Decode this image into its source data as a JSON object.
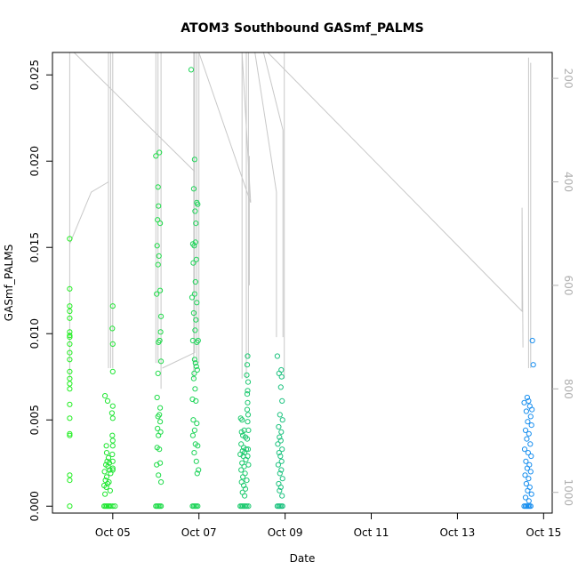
{
  "chart_data": {
    "type": "scatter",
    "title": "ATOM3 Southbound GASmf_PALMS",
    "xlabel": "Date",
    "ylabel": "GASmf_PALMS",
    "x_ticks": [
      "Oct 05",
      "Oct 07",
      "Oct 09",
      "Oct 11",
      "Oct 13",
      "Oct 15"
    ],
    "x_tick_days": [
      5,
      7,
      9,
      11,
      13,
      15
    ],
    "xlim_days": [
      3.6,
      15.2
    ],
    "y_ticks": [
      "0.000",
      "0.005",
      "0.010",
      "0.015",
      "0.020",
      "0.025"
    ],
    "y_tick_values": [
      0,
      0.005,
      0.01,
      0.015,
      0.02,
      0.025
    ],
    "ylim": [
      -0.0004,
      0.0263
    ],
    "y2_ticks": [
      "200",
      "400",
      "600",
      "800",
      "1000"
    ],
    "y2_tick_values": [
      200,
      400,
      600,
      800,
      1000
    ],
    "y2lim": [
      150,
      1040
    ],
    "y2_reversed": true,
    "grid": false,
    "marker": "open-circle",
    "point_color_start": "#22ee22",
    "point_color_end": "#1a8ff0",
    "pressure_line_color": "#c8c8c8",
    "points": [
      [
        4.0,
        0.0155
      ],
      [
        4.0,
        0.0126
      ],
      [
        4.0,
        0.0116
      ],
      [
        4.0,
        0.0113
      ],
      [
        4.0,
        0.0109
      ],
      [
        4.0,
        0.0101
      ],
      [
        4.0,
        0.0099
      ],
      [
        4.0,
        0.0098
      ],
      [
        4.0,
        0.0094
      ],
      [
        4.0,
        0.0089
      ],
      [
        4.0,
        0.0085
      ],
      [
        4.0,
        0.0078
      ],
      [
        4.0,
        0.0074
      ],
      [
        4.0,
        0.0071
      ],
      [
        4.0,
        0.0068
      ],
      [
        4.0,
        0.0059
      ],
      [
        4.0,
        0.0051
      ],
      [
        4.0,
        0.0042
      ],
      [
        4.0,
        0.0041
      ],
      [
        4.0,
        0.0018
      ],
      [
        4.0,
        0.0015
      ],
      [
        4.0,
        0.0
      ],
      [
        4.82,
        0.0064
      ],
      [
        4.88,
        0.0061
      ],
      [
        4.85,
        0.0035
      ],
      [
        4.86,
        0.0031
      ],
      [
        4.9,
        0.0028
      ],
      [
        4.87,
        0.0026
      ],
      [
        4.92,
        0.0025
      ],
      [
        4.84,
        0.0024
      ],
      [
        4.89,
        0.0023
      ],
      [
        4.93,
        0.0021
      ],
      [
        4.81,
        0.002
      ],
      [
        4.95,
        0.0019
      ],
      [
        4.86,
        0.0017
      ],
      [
        4.83,
        0.0015
      ],
      [
        4.91,
        0.0014
      ],
      [
        4.88,
        0.0013
      ],
      [
        4.8,
        0.0012
      ],
      [
        4.85,
        0.0011
      ],
      [
        4.94,
        0.0009
      ],
      [
        4.82,
        0.0007
      ],
      [
        4.8,
        0.0
      ],
      [
        4.83,
        0.0
      ],
      [
        4.86,
        0.0
      ],
      [
        4.89,
        0.0
      ],
      [
        4.92,
        0.0
      ],
      [
        4.95,
        0.0
      ],
      [
        5.0,
        0.0116
      ],
      [
        4.99,
        0.0103
      ],
      [
        5.0,
        0.0094
      ],
      [
        5.0,
        0.0078
      ],
      [
        5.0,
        0.0058
      ],
      [
        4.98,
        0.0054
      ],
      [
        5.0,
        0.0051
      ],
      [
        4.99,
        0.0041
      ],
      [
        5.0,
        0.0038
      ],
      [
        5.0,
        0.0035
      ],
      [
        4.99,
        0.003
      ],
      [
        5.0,
        0.0026
      ],
      [
        5.0,
        0.0022
      ],
      [
        5.0,
        0.0021
      ],
      [
        5.0,
        0.0
      ],
      [
        5.05,
        0.0
      ],
      [
        6.0,
        0.0203
      ],
      [
        6.08,
        0.0205
      ],
      [
        6.05,
        0.0185
      ],
      [
        6.06,
        0.0174
      ],
      [
        6.04,
        0.0166
      ],
      [
        6.1,
        0.0164
      ],
      [
        6.03,
        0.0151
      ],
      [
        6.07,
        0.0145
      ],
      [
        6.05,
        0.014
      ],
      [
        6.1,
        0.0125
      ],
      [
        6.02,
        0.0123
      ],
      [
        6.12,
        0.011
      ],
      [
        6.11,
        0.0101
      ],
      [
        6.09,
        0.0096
      ],
      [
        6.06,
        0.0095
      ],
      [
        6.12,
        0.0084
      ],
      [
        6.05,
        0.0077
      ],
      [
        6.03,
        0.0063
      ],
      [
        6.1,
        0.0057
      ],
      [
        6.08,
        0.0053
      ],
      [
        6.05,
        0.0052
      ],
      [
        6.1,
        0.0049
      ],
      [
        6.04,
        0.0045
      ],
      [
        6.11,
        0.0043
      ],
      [
        6.06,
        0.0041
      ],
      [
        6.03,
        0.0034
      ],
      [
        6.08,
        0.0033
      ],
      [
        6.1,
        0.0025
      ],
      [
        6.02,
        0.0024
      ],
      [
        6.06,
        0.0018
      ],
      [
        6.12,
        0.0014
      ],
      [
        6.0,
        0.0
      ],
      [
        6.03,
        0.0
      ],
      [
        6.06,
        0.0
      ],
      [
        6.09,
        0.0
      ],
      [
        6.12,
        0.0
      ],
      [
        6.82,
        0.0253
      ],
      [
        6.9,
        0.0201
      ],
      [
        6.88,
        0.0184
      ],
      [
        6.95,
        0.0176
      ],
      [
        6.97,
        0.0175
      ],
      [
        6.91,
        0.0171
      ],
      [
        6.93,
        0.0164
      ],
      [
        6.86,
        0.0152
      ],
      [
        6.92,
        0.0153
      ],
      [
        6.89,
        0.0151
      ],
      [
        6.94,
        0.0143
      ],
      [
        6.87,
        0.0141
      ],
      [
        6.92,
        0.013
      ],
      [
        6.9,
        0.0123
      ],
      [
        6.84,
        0.0121
      ],
      [
        6.95,
        0.0118
      ],
      [
        6.88,
        0.0112
      ],
      [
        6.93,
        0.0108
      ],
      [
        6.91,
        0.0102
      ],
      [
        6.86,
        0.0096
      ],
      [
        6.98,
        0.0096
      ],
      [
        6.95,
        0.0095
      ],
      [
        6.9,
        0.0085
      ],
      [
        6.92,
        0.0083
      ],
      [
        6.94,
        0.0081
      ],
      [
        6.96,
        0.0079
      ],
      [
        6.89,
        0.0077
      ],
      [
        6.88,
        0.0074
      ],
      [
        6.91,
        0.0068
      ],
      [
        6.85,
        0.0062
      ],
      [
        6.93,
        0.0061
      ],
      [
        6.87,
        0.005
      ],
      [
        6.95,
        0.0048
      ],
      [
        6.9,
        0.0044
      ],
      [
        6.86,
        0.0041
      ],
      [
        6.92,
        0.0036
      ],
      [
        6.97,
        0.0035
      ],
      [
        6.89,
        0.0031
      ],
      [
        6.94,
        0.0026
      ],
      [
        6.99,
        0.0021
      ],
      [
        6.96,
        0.0019
      ],
      [
        6.85,
        0.0
      ],
      [
        6.88,
        0.0
      ],
      [
        6.91,
        0.0
      ],
      [
        6.94,
        0.0
      ],
      [
        6.97,
        0.0
      ],
      [
        7.97,
        0.0051
      ],
      [
        8.0,
        0.005
      ],
      [
        8.05,
        0.0044
      ],
      [
        7.99,
        0.0043
      ],
      [
        8.02,
        0.0041
      ],
      [
        8.08,
        0.004
      ],
      [
        7.98,
        0.0036
      ],
      [
        8.04,
        0.0034
      ],
      [
        8.1,
        0.0033
      ],
      [
        8.01,
        0.0032
      ],
      [
        8.06,
        0.0031
      ],
      [
        7.96,
        0.003
      ],
      [
        8.03,
        0.0029
      ],
      [
        8.09,
        0.0027
      ],
      [
        8.0,
        0.0025
      ],
      [
        8.05,
        0.0023
      ],
      [
        7.98,
        0.0021
      ],
      [
        8.07,
        0.0019
      ],
      [
        8.02,
        0.0017
      ],
      [
        8.11,
        0.0015
      ],
      [
        7.99,
        0.0014
      ],
      [
        8.04,
        0.0012
      ],
      [
        8.08,
        0.001
      ],
      [
        8.01,
        0.0008
      ],
      [
        8.06,
        0.0006
      ],
      [
        8.13,
        0.0087
      ],
      [
        8.12,
        0.0082
      ],
      [
        8.11,
        0.0076
      ],
      [
        8.13,
        0.0067
      ],
      [
        8.12,
        0.0065
      ],
      [
        8.14,
        0.0072
      ],
      [
        8.13,
        0.006
      ],
      [
        8.12,
        0.0056
      ],
      [
        8.14,
        0.0053
      ],
      [
        8.13,
        0.0049
      ],
      [
        8.15,
        0.0044
      ],
      [
        8.12,
        0.0039
      ],
      [
        8.14,
        0.0033
      ],
      [
        8.13,
        0.0029
      ],
      [
        8.15,
        0.0024
      ],
      [
        7.96,
        0.0
      ],
      [
        7.99,
        0.0
      ],
      [
        8.02,
        0.0
      ],
      [
        8.05,
        0.0
      ],
      [
        8.08,
        0.0
      ],
      [
        8.11,
        0.0
      ],
      [
        8.15,
        0.0
      ],
      [
        8.82,
        0.0087
      ],
      [
        8.91,
        0.0079
      ],
      [
        8.86,
        0.0077
      ],
      [
        8.92,
        0.0075
      ],
      [
        8.9,
        0.0069
      ],
      [
        8.93,
        0.0061
      ],
      [
        8.88,
        0.0053
      ],
      [
        8.94,
        0.005
      ],
      [
        8.85,
        0.0046
      ],
      [
        8.91,
        0.0043
      ],
      [
        8.87,
        0.004
      ],
      [
        8.9,
        0.0038
      ],
      [
        8.83,
        0.0036
      ],
      [
        8.93,
        0.0033
      ],
      [
        8.86,
        0.0031
      ],
      [
        8.89,
        0.0029
      ],
      [
        8.92,
        0.0026
      ],
      [
        8.84,
        0.0024
      ],
      [
        8.91,
        0.0021
      ],
      [
        8.88,
        0.0019
      ],
      [
        8.94,
        0.0016
      ],
      [
        8.85,
        0.0013
      ],
      [
        8.9,
        0.0011
      ],
      [
        8.87,
        0.0009
      ],
      [
        8.93,
        0.0006
      ],
      [
        8.82,
        0.0
      ],
      [
        8.85,
        0.0
      ],
      [
        8.88,
        0.0
      ],
      [
        8.91,
        0.0
      ],
      [
        8.94,
        0.0
      ],
      [
        14.55,
        0.006
      ],
      [
        14.62,
        0.0063
      ],
      [
        14.65,
        0.0061
      ],
      [
        14.68,
        0.0058
      ],
      [
        14.6,
        0.0055
      ],
      [
        14.7,
        0.0052
      ],
      [
        14.63,
        0.0049
      ],
      [
        14.72,
        0.0047
      ],
      [
        14.58,
        0.0044
      ],
      [
        14.66,
        0.0042
      ],
      [
        14.61,
        0.0039
      ],
      [
        14.69,
        0.0036
      ],
      [
        14.56,
        0.0033
      ],
      [
        14.64,
        0.0031
      ],
      [
        14.71,
        0.0029
      ],
      [
        14.59,
        0.0026
      ],
      [
        14.67,
        0.0024
      ],
      [
        14.62,
        0.0022
      ],
      [
        14.7,
        0.002
      ],
      [
        14.57,
        0.0018
      ],
      [
        14.65,
        0.0016
      ],
      [
        14.6,
        0.0013
      ],
      [
        14.68,
        0.0011
      ],
      [
        14.63,
        0.0009
      ],
      [
        14.72,
        0.0007
      ],
      [
        14.58,
        0.0005
      ],
      [
        14.66,
        0.0003
      ],
      [
        14.74,
        0.0096
      ],
      [
        14.76,
        0.0082
      ],
      [
        14.73,
        0.0056
      ],
      [
        14.55,
        0.0
      ],
      [
        14.58,
        0.0
      ],
      [
        14.61,
        0.0
      ],
      [
        14.64,
        0.0
      ],
      [
        14.67,
        0.0
      ],
      [
        14.7,
        0.0
      ]
    ],
    "pressure_lines": [
      [
        [
          4.0,
          150
        ],
        [
          4.0,
          520
        ],
        [
          4.0,
          700
        ],
        [
          4.0,
          780
        ],
        [
          4.0,
          520
        ],
        [
          4.5,
          420
        ],
        [
          4.9,
          400
        ],
        [
          4.9,
          150
        ]
      ],
      [
        [
          4.9,
          150
        ],
        [
          4.9,
          760
        ]
      ],
      [
        [
          4.95,
          150
        ],
        [
          4.95,
          760
        ]
      ],
      [
        [
          5.0,
          150
        ],
        [
          5.0,
          760
        ]
      ],
      [
        [
          4.1,
          150
        ],
        [
          6.9,
          380
        ]
      ],
      [
        [
          6.0,
          150
        ],
        [
          6.0,
          750
        ]
      ],
      [
        [
          6.05,
          150
        ],
        [
          6.05,
          750
        ]
      ],
      [
        [
          6.12,
          150
        ],
        [
          6.12,
          800
        ]
      ],
      [
        [
          6.15,
          760
        ],
        [
          6.9,
          730
        ],
        [
          6.9,
          150
        ]
      ],
      [
        [
          6.88,
          150
        ],
        [
          6.88,
          780
        ]
      ],
      [
        [
          6.95,
          150
        ],
        [
          6.95,
          750
        ]
      ],
      [
        [
          7.0,
          150
        ],
        [
          7.0,
          750
        ]
      ],
      [
        [
          7.0,
          150
        ],
        [
          8.2,
          440
        ],
        [
          8.0,
          150
        ],
        [
          8.0,
          780
        ]
      ],
      [
        [
          8.1,
          150
        ],
        [
          8.1,
          780
        ]
      ],
      [
        [
          8.15,
          150
        ],
        [
          8.15,
          740
        ]
      ],
      [
        [
          8.17,
          350
        ],
        [
          8.17,
          600
        ]
      ],
      [
        [
          8.3,
          150
        ],
        [
          8.8,
          420
        ],
        [
          8.8,
          700
        ]
      ],
      [
        [
          8.5,
          150
        ],
        [
          8.95,
          300
        ],
        [
          8.95,
          700
        ]
      ],
      [
        [
          8.98,
          150
        ],
        [
          8.98,
          780
        ]
      ],
      [
        [
          8.6,
          150
        ],
        [
          14.5,
          650
        ],
        [
          14.5,
          450
        ],
        [
          14.52,
          720
        ]
      ],
      [
        [
          14.65,
          160
        ],
        [
          14.65,
          760
        ]
      ],
      [
        [
          14.7,
          170
        ],
        [
          14.7,
          760
        ]
      ]
    ]
  }
}
